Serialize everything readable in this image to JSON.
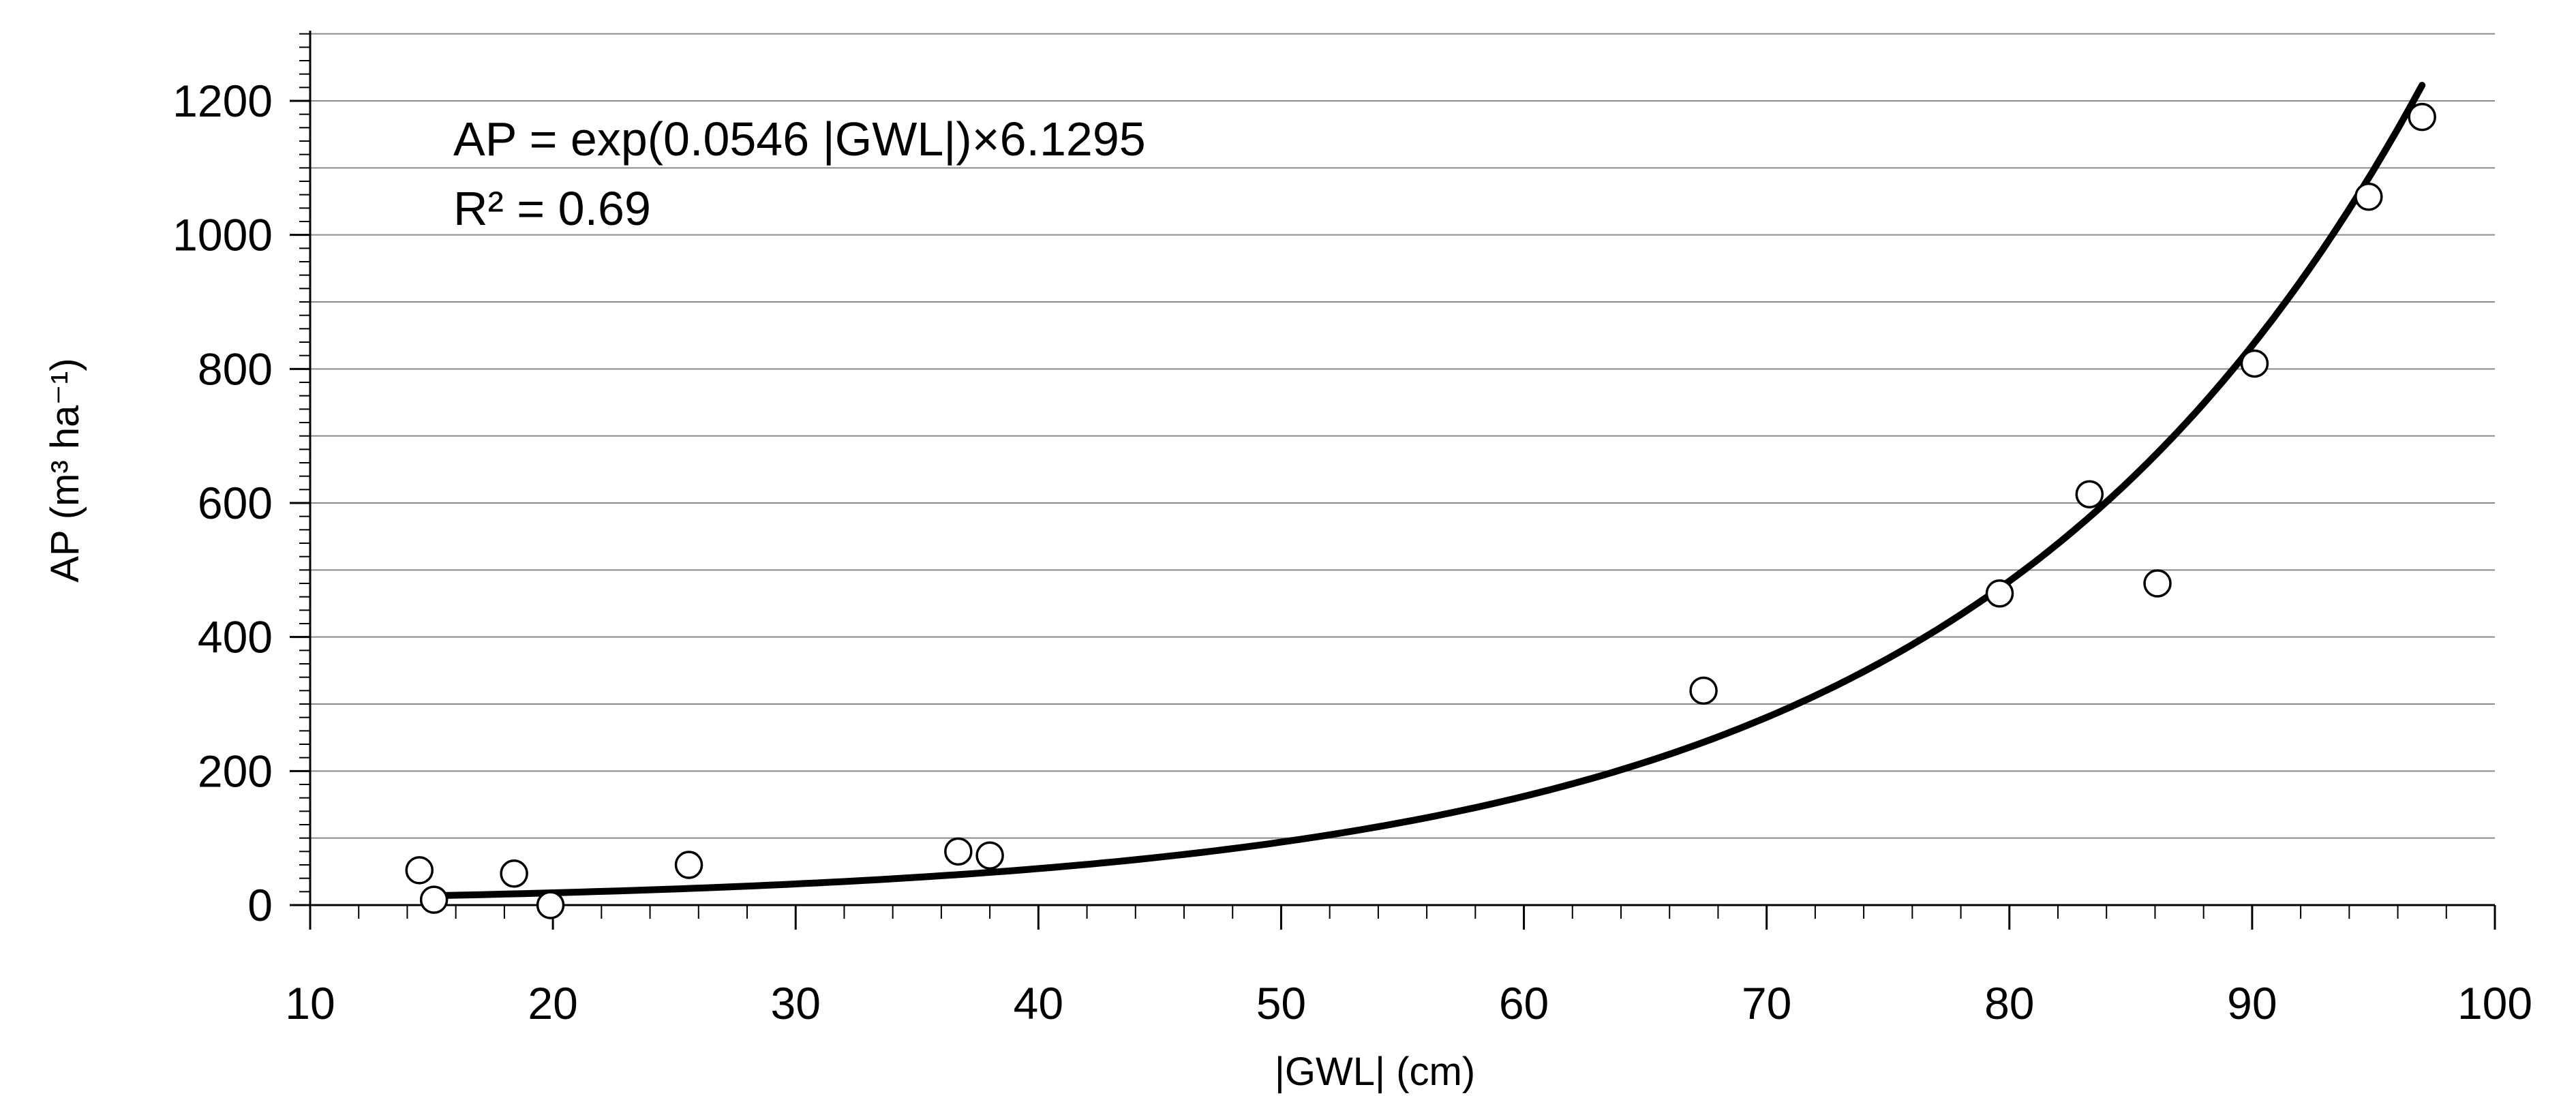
{
  "chart_data": {
    "type": "scatter",
    "xlabel": "|GWL| (cm)",
    "ylabel": "AP (m³ ha⁻¹)",
    "xlim": [
      10,
      100
    ],
    "ylim": [
      0,
      1300
    ],
    "x_ticks": [
      10,
      20,
      30,
      40,
      50,
      60,
      70,
      80,
      90,
      100
    ],
    "y_ticks": [
      0,
      200,
      400,
      600,
      800,
      1000,
      1200
    ],
    "grid": "horizontal",
    "annotations": [
      "AP = exp(0.0546 |GWL|)×6.1295",
      "R² = 0.69"
    ],
    "points": [
      {
        "x": 14.5,
        "y": 52
      },
      {
        "x": 15.1,
        "y": 8
      },
      {
        "x": 18.4,
        "y": 47
      },
      {
        "x": 19.9,
        "y": 0
      },
      {
        "x": 25.6,
        "y": 60
      },
      {
        "x": 36.7,
        "y": 80
      },
      {
        "x": 38.0,
        "y": 74
      },
      {
        "x": 67.4,
        "y": 320
      },
      {
        "x": 79.6,
        "y": 465
      },
      {
        "x": 83.3,
        "y": 613
      },
      {
        "x": 86.1,
        "y": 480
      },
      {
        "x": 90.1,
        "y": 808
      },
      {
        "x": 94.8,
        "y": 1057
      },
      {
        "x": 97.0,
        "y": 1176
      }
    ],
    "fit": {
      "type": "exponential",
      "a": 6.1295,
      "b": 0.0546,
      "x_range": [
        15,
        97
      ]
    }
  }
}
